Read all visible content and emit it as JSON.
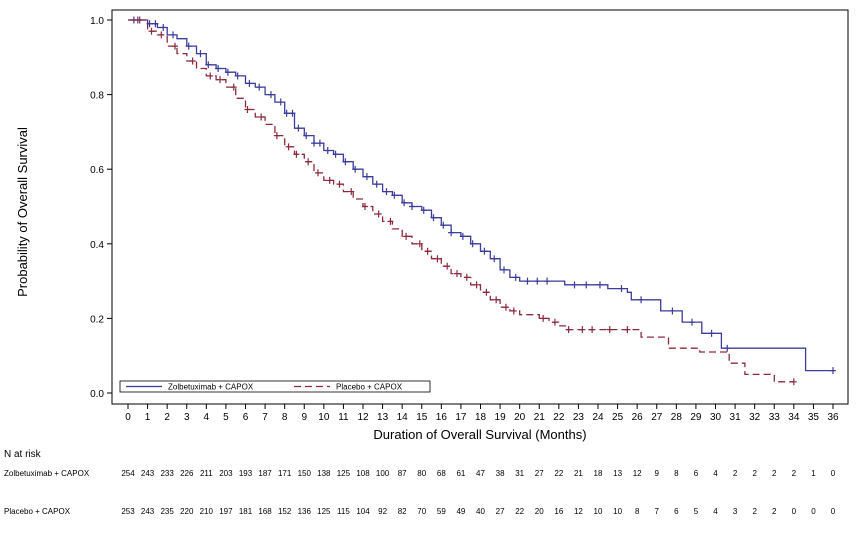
{
  "chart_data": {
    "type": "line",
    "subtype": "kaplan-meier",
    "title": "",
    "xlabel": "Duration of Overall Survival (Months)",
    "ylabel": "Probability of Overall Survival",
    "xlim": [
      0,
      36
    ],
    "ylim": [
      0,
      1.0
    ],
    "x_ticks": [
      0,
      1,
      2,
      3,
      4,
      5,
      6,
      7,
      8,
      9,
      10,
      11,
      12,
      13,
      14,
      15,
      16,
      17,
      18,
      19,
      20,
      21,
      22,
      23,
      24,
      25,
      26,
      27,
      28,
      29,
      30,
      31,
      32,
      33,
      34,
      35,
      36
    ],
    "y_ticks": [
      0.0,
      0.2,
      0.4,
      0.6,
      0.8,
      1.0
    ],
    "y_tick_labels": [
      "0.0",
      "0.2",
      "0.4",
      "0.6",
      "0.8",
      "1.0"
    ],
    "grid": false,
    "legend_position": "bottom-left",
    "series": [
      {
        "name": "Zolbetuximab + CAPOX",
        "color": "#3c3c9c",
        "line_style": "solid",
        "points": [
          [
            0,
            1.0
          ],
          [
            1,
            0.99
          ],
          [
            1.5,
            0.98
          ],
          [
            2,
            0.96
          ],
          [
            2.5,
            0.95
          ],
          [
            3,
            0.93
          ],
          [
            3.5,
            0.91
          ],
          [
            4,
            0.88
          ],
          [
            4.5,
            0.87
          ],
          [
            5,
            0.86
          ],
          [
            5.5,
            0.85
          ],
          [
            6,
            0.83
          ],
          [
            6.5,
            0.82
          ],
          [
            7,
            0.8
          ],
          [
            7.5,
            0.78
          ],
          [
            8,
            0.75
          ],
          [
            8.5,
            0.71
          ],
          [
            9,
            0.69
          ],
          [
            9.5,
            0.67
          ],
          [
            10,
            0.65
          ],
          [
            10.5,
            0.64
          ],
          [
            11,
            0.62
          ],
          [
            11.5,
            0.6
          ],
          [
            12,
            0.58
          ],
          [
            12.5,
            0.56
          ],
          [
            13,
            0.54
          ],
          [
            13.5,
            0.53
          ],
          [
            14,
            0.51
          ],
          [
            14.5,
            0.5
          ],
          [
            15,
            0.49
          ],
          [
            15.5,
            0.47
          ],
          [
            16,
            0.45
          ],
          [
            16.5,
            0.43
          ],
          [
            17,
            0.42
          ],
          [
            17.5,
            0.4
          ],
          [
            18,
            0.38
          ],
          [
            18.5,
            0.36
          ],
          [
            19,
            0.33
          ],
          [
            19.5,
            0.31
          ],
          [
            20,
            0.3
          ],
          [
            22,
            0.3
          ],
          [
            22.3,
            0.29
          ],
          [
            24.3,
            0.29
          ],
          [
            24.5,
            0.28
          ],
          [
            25.5,
            0.27
          ],
          [
            25.7,
            0.25
          ],
          [
            27,
            0.25
          ],
          [
            27.2,
            0.22
          ],
          [
            28,
            0.22
          ],
          [
            28.3,
            0.19
          ],
          [
            29,
            0.19
          ],
          [
            29.3,
            0.16
          ],
          [
            30,
            0.16
          ],
          [
            30.3,
            0.12
          ],
          [
            34.5,
            0.12
          ],
          [
            34.6,
            0.06
          ],
          [
            36,
            0.06
          ]
        ],
        "censor_x": [
          0.3,
          0.6,
          1.1,
          1.4,
          1.8,
          2.3,
          3.1,
          3.7,
          4.1,
          4.6,
          5.1,
          5.6,
          6.2,
          6.7,
          7.3,
          7.8,
          8.1,
          8.4,
          8.7,
          9.1,
          9.5,
          9.8,
          10.2,
          10.6,
          11.1,
          11.6,
          12.2,
          12.7,
          13.2,
          13.6,
          14.1,
          14.5,
          15.1,
          15.6,
          16.1,
          16.5,
          17.1,
          17.6,
          18.2,
          18.7,
          19.2,
          19.8,
          20.4,
          20.9,
          21.4,
          22.8,
          23.4,
          24.1,
          25.2,
          26.2,
          27.8,
          28.8,
          29.8,
          30.6,
          36.0
        ],
        "n_at_risk": [
          254,
          243,
          233,
          226,
          211,
          203,
          193,
          187,
          171,
          150,
          138,
          125,
          108,
          100,
          87,
          80,
          68,
          61,
          47,
          38,
          31,
          27,
          22,
          21,
          18,
          13,
          12,
          9,
          8,
          6,
          4,
          2,
          2,
          2,
          2,
          1,
          0
        ]
      },
      {
        "name": "Placebo + CAPOX",
        "color": "#8c2a3c",
        "line_style": "dashed",
        "points": [
          [
            0,
            1.0
          ],
          [
            1,
            0.97
          ],
          [
            1.5,
            0.96
          ],
          [
            2,
            0.93
          ],
          [
            2.5,
            0.91
          ],
          [
            3,
            0.89
          ],
          [
            3.5,
            0.87
          ],
          [
            4,
            0.85
          ],
          [
            4.5,
            0.84
          ],
          [
            5,
            0.82
          ],
          [
            5.5,
            0.79
          ],
          [
            6,
            0.76
          ],
          [
            6.5,
            0.74
          ],
          [
            7,
            0.72
          ],
          [
            7.5,
            0.69
          ],
          [
            8,
            0.66
          ],
          [
            8.5,
            0.64
          ],
          [
            9,
            0.62
          ],
          [
            9.5,
            0.59
          ],
          [
            10,
            0.57
          ],
          [
            10.5,
            0.56
          ],
          [
            11,
            0.54
          ],
          [
            11.5,
            0.52
          ],
          [
            12,
            0.5
          ],
          [
            12.5,
            0.48
          ],
          [
            13,
            0.46
          ],
          [
            13.5,
            0.44
          ],
          [
            14,
            0.42
          ],
          [
            14.5,
            0.4
          ],
          [
            15,
            0.38
          ],
          [
            15.5,
            0.36
          ],
          [
            16,
            0.34
          ],
          [
            16.5,
            0.32
          ],
          [
            17,
            0.31
          ],
          [
            17.5,
            0.29
          ],
          [
            18,
            0.27
          ],
          [
            18.5,
            0.25
          ],
          [
            19,
            0.23
          ],
          [
            19.5,
            0.22
          ],
          [
            20,
            0.21
          ],
          [
            21,
            0.2
          ],
          [
            21.5,
            0.19
          ],
          [
            22,
            0.18
          ],
          [
            22.4,
            0.17
          ],
          [
            26.1,
            0.17
          ],
          [
            26.2,
            0.15
          ],
          [
            27.5,
            0.15
          ],
          [
            27.6,
            0.12
          ],
          [
            29,
            0.12
          ],
          [
            29.2,
            0.11
          ],
          [
            30.5,
            0.11
          ],
          [
            30.7,
            0.08
          ],
          [
            31.3,
            0.08
          ],
          [
            31.5,
            0.05
          ],
          [
            32.8,
            0.05
          ],
          [
            33,
            0.03
          ],
          [
            34,
            0.03
          ]
        ],
        "censor_x": [
          0.5,
          1.2,
          1.7,
          2.4,
          3.3,
          4.2,
          4.7,
          5.4,
          6.1,
          6.8,
          7.6,
          8.2,
          8.6,
          9.2,
          9.7,
          10.3,
          10.8,
          11.4,
          12.1,
          12.8,
          13.4,
          14.2,
          14.9,
          15.3,
          15.8,
          16.3,
          16.8,
          17.3,
          17.8,
          18.3,
          18.8,
          19.3,
          19.7,
          21.2,
          21.8,
          22.5,
          23.2,
          23.7,
          24.6,
          25.5,
          34.0
        ],
        "n_at_risk": [
          253,
          243,
          235,
          220,
          210,
          197,
          181,
          168,
          152,
          136,
          125,
          115,
          104,
          92,
          82,
          70,
          59,
          49,
          40,
          27,
          22,
          20,
          16,
          12,
          10,
          10,
          8,
          7,
          6,
          5,
          4,
          3,
          2,
          2,
          0,
          0,
          0
        ]
      }
    ]
  },
  "risk_table": {
    "header": "N at risk",
    "rows": [
      {
        "label": "Zolbetuximab + CAPOX"
      },
      {
        "label": "Placebo + CAPOX"
      }
    ]
  }
}
